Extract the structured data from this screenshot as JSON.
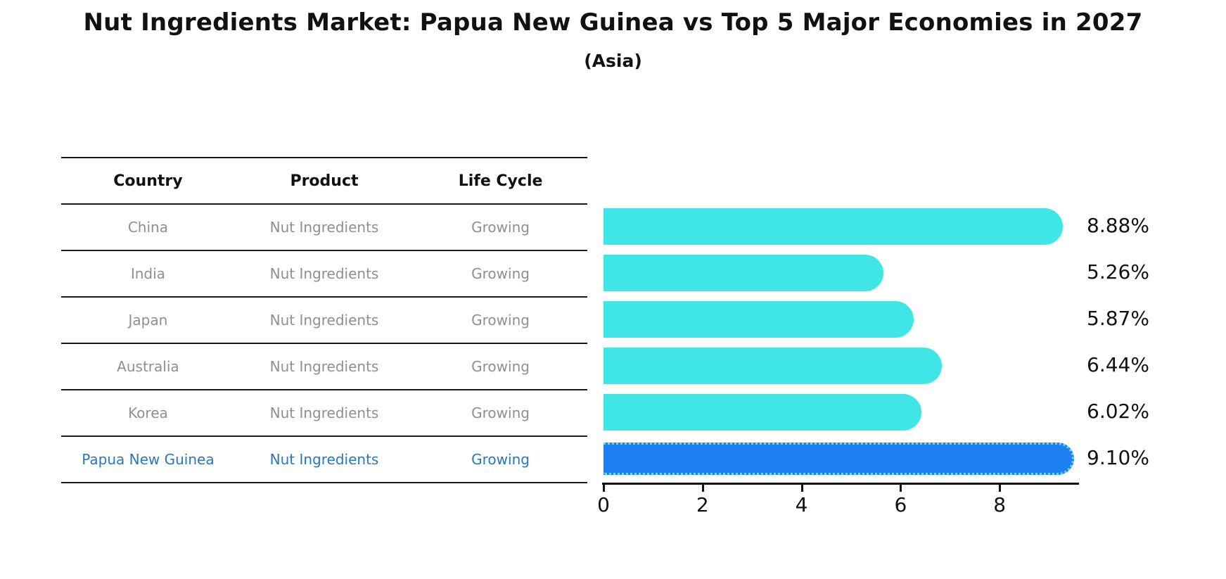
{
  "header": {
    "title": "Nut Ingredients Market: Papua New Guinea vs Top 5 Major Economies in 2027",
    "subtitle": "(Asia)"
  },
  "table": {
    "columns": [
      "Country",
      "Product",
      "Life Cycle"
    ],
    "rows": [
      {
        "country": "China",
        "product": "Nut Ingredients",
        "life_cycle": "Growing",
        "highlight": false
      },
      {
        "country": "India",
        "product": "Nut Ingredients",
        "life_cycle": "Growing",
        "highlight": false
      },
      {
        "country": "Japan",
        "product": "Nut Ingredients",
        "life_cycle": "Growing",
        "highlight": false
      },
      {
        "country": "Australia",
        "product": "Nut Ingredients",
        "life_cycle": "Growing",
        "highlight": false
      },
      {
        "country": "Korea",
        "product": "Nut Ingredients",
        "life_cycle": "Growing",
        "highlight": false
      },
      {
        "country": "Papua New Guinea",
        "product": "Nut Ingredients",
        "life_cycle": "Growing",
        "highlight": true
      }
    ]
  },
  "chart_data": {
    "type": "bar",
    "orientation": "horizontal",
    "title": "Nut Ingredients Market: Papua New Guinea vs Top 5 Major Economies in 2027",
    "subtitle": "(Asia)",
    "categories": [
      "China",
      "India",
      "Japan",
      "Australia",
      "Korea",
      "Papua New Guinea"
    ],
    "values": [
      8.88,
      5.26,
      5.87,
      6.44,
      6.02,
      9.1
    ],
    "value_labels": [
      "8.88%",
      "5.26%",
      "5.87%",
      "6.44%",
      "6.02%",
      "9.10%"
    ],
    "x_ticks": [
      "0",
      "2",
      "4",
      "6",
      "8"
    ],
    "x_tick_values": [
      0,
      2,
      4,
      6,
      8
    ],
    "xlim": [
      0,
      9.6
    ],
    "highlight_index": 5,
    "grid": false,
    "legend": false
  },
  "colors": {
    "bar": "#40e5e5",
    "highlight_bar": "#1e80f0",
    "highlight_bar_edge": "#6cd2f4",
    "highlight_text": "#2878be",
    "table_text": "#8f8f8f",
    "heading_text": "#111111"
  }
}
